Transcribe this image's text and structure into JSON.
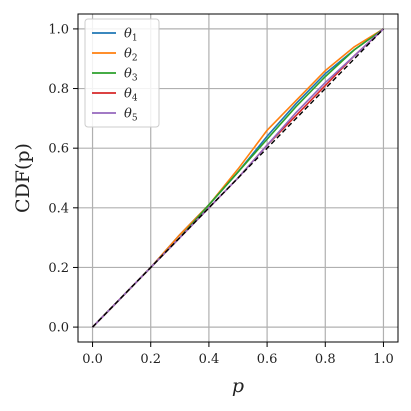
{
  "chart_data": {
    "type": "line",
    "title": "",
    "xlabel": "p",
    "ylabel": "CDF(p)",
    "xlim": [
      -0.05,
      1.05
    ],
    "ylim": [
      -0.05,
      1.05
    ],
    "x_ticks": [
      0.0,
      0.2,
      0.4,
      0.6,
      0.8,
      1.0
    ],
    "y_ticks": [
      0.0,
      0.2,
      0.4,
      0.6,
      0.8,
      1.0
    ],
    "x_tick_labels": [
      "0.0",
      "0.2",
      "0.4",
      "0.6",
      "0.8",
      "1.0"
    ],
    "y_tick_labels": [
      "0.0",
      "0.2",
      "0.4",
      "0.6",
      "0.8",
      "1.0"
    ],
    "grid": true,
    "legend_position": "top-left",
    "x": [
      0.0,
      0.1,
      0.2,
      0.3,
      0.4,
      0.5,
      0.6,
      0.7,
      0.8,
      0.9,
      1.0
    ],
    "series": [
      {
        "name": "θ",
        "subscript": "1",
        "color": "#1f77b4",
        "values": [
          0.0,
          0.1,
          0.2,
          0.31,
          0.41,
          0.52,
          0.64,
          0.75,
          0.85,
          0.93,
          1.0
        ]
      },
      {
        "name": "θ",
        "subscript": "2",
        "color": "#ff7f0e",
        "values": [
          0.0,
          0.1,
          0.2,
          0.31,
          0.41,
          0.53,
          0.66,
          0.76,
          0.86,
          0.94,
          1.0
        ]
      },
      {
        "name": "θ",
        "subscript": "3",
        "color": "#2ca02c",
        "values": [
          0.0,
          0.1,
          0.2,
          0.3,
          0.41,
          0.52,
          0.63,
          0.74,
          0.84,
          0.93,
          1.0
        ]
      },
      {
        "name": "θ",
        "subscript": "4",
        "color": "#d62728",
        "values": [
          0.0,
          0.1,
          0.2,
          0.3,
          0.4,
          0.5,
          0.61,
          0.71,
          0.81,
          0.91,
          1.0
        ]
      },
      {
        "name": "θ",
        "subscript": "5",
        "color": "#9467bd",
        "values": [
          0.0,
          0.1,
          0.2,
          0.3,
          0.4,
          0.5,
          0.61,
          0.72,
          0.82,
          0.91,
          1.0
        ]
      }
    ],
    "reference_line": {
      "color": "#000000",
      "style": "dashed",
      "x": [
        0.0,
        1.0
      ],
      "y": [
        0.0,
        1.0
      ]
    }
  }
}
